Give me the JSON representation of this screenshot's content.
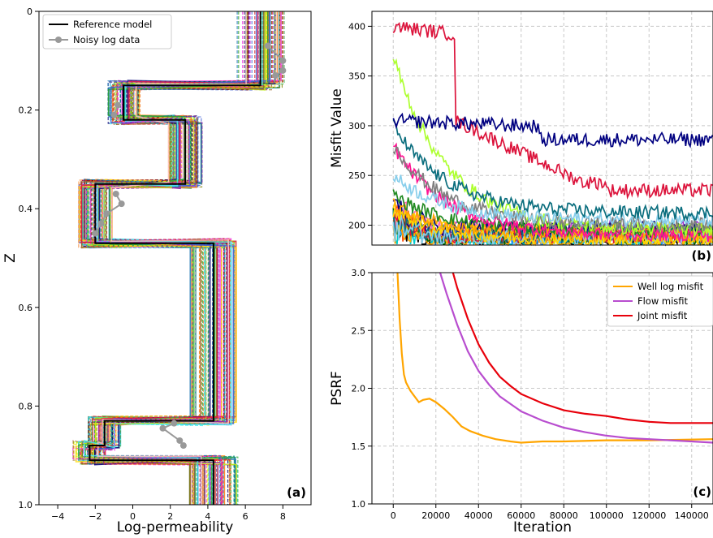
{
  "chart_data": [
    {
      "panel": "(a)",
      "type": "line",
      "xlabel": "Log-permeability",
      "ylabel": "Z",
      "xlim": [
        -5,
        9.5
      ],
      "ylim": [
        1.0,
        0.0
      ],
      "xticks": [
        "−4",
        "−2",
        "0",
        "2",
        "4",
        "6",
        "8"
      ],
      "yticks": [
        "0",
        "0.2",
        "0.4",
        "0.6",
        "0.8",
        "1.0"
      ],
      "legend": {
        "placement": "top-left",
        "items": [
          "Reference model",
          "Noisy log data"
        ]
      },
      "reference_model": {
        "name": "Reference model",
        "color": "#000000",
        "steps": [
          {
            "z0": 0.0,
            "z1": 0.15,
            "k": 6.8
          },
          {
            "z0": 0.15,
            "z1": 0.22,
            "k": -0.5
          },
          {
            "z0": 0.22,
            "z1": 0.35,
            "k": 2.8
          },
          {
            "z0": 0.35,
            "z1": 0.47,
            "k": -2.0
          },
          {
            "z0": 0.47,
            "z1": 0.83,
            "k": 4.3
          },
          {
            "z0": 0.83,
            "z1": 0.88,
            "k": -1.5
          },
          {
            "z0": 0.88,
            "z1": 0.91,
            "k": -2.3
          },
          {
            "z0": 0.91,
            "z1": 1.0,
            "k": 4.3
          }
        ]
      },
      "noisy_log_data": {
        "name": "Noisy log data",
        "color": "#999999",
        "points": [
          {
            "z": 0.07,
            "k": 7.2
          },
          {
            "z": 0.1,
            "k": 8.0
          },
          {
            "z": 0.12,
            "k": 8.0
          },
          {
            "z": 0.13,
            "k": 7.6
          },
          {
            "z": 0.19,
            "k": -0.8
          },
          {
            "z": 0.21,
            "k": -1.0
          },
          {
            "z": 0.37,
            "k": -0.9
          },
          {
            "z": 0.39,
            "k": -0.6
          },
          {
            "z": 0.41,
            "k": -1.4
          },
          {
            "z": 0.43,
            "k": -1.7
          },
          {
            "z": 0.45,
            "k": -2.0
          },
          {
            "z": 0.835,
            "k": 2.2
          },
          {
            "z": 0.845,
            "k": 1.6
          },
          {
            "z": 0.87,
            "k": 2.5
          },
          {
            "z": 0.88,
            "k": 2.7
          }
        ]
      },
      "ensemble_colors": [
        "#e6194b",
        "#3cb44b",
        "#ffe119",
        "#4363d8",
        "#f58231",
        "#911eb4",
        "#46f0f0",
        "#f032e6",
        "#bcf60c",
        "#fabebe",
        "#008080",
        "#9a6324",
        "#800000",
        "#808000",
        "#000075",
        "#ff7f0e",
        "#1f77b4",
        "#2ca02c",
        "#d62728",
        "#17becf"
      ],
      "panel_label": "(a)"
    },
    {
      "panel": "(b)",
      "type": "line",
      "ylabel": "Misfit Value",
      "xlim": [
        -10000,
        150000
      ],
      "ylim": [
        180,
        415
      ],
      "yticks": [
        "200",
        "250",
        "300",
        "350",
        "400"
      ],
      "series_levels": [
        {
          "color": "#000080",
          "start": 305,
          "end": 283
        },
        {
          "color": "#dc143c",
          "start": 400,
          "drop_at": 29000,
          "end": 243
        },
        {
          "color": "#0b6e7e",
          "start": 300,
          "end": 212
        },
        {
          "color": "#87ceeb",
          "start": 250,
          "end": 205
        },
        {
          "color": "#808080",
          "start": 280,
          "end": 200
        },
        {
          "color": "#adff2f",
          "start": 370,
          "end": 195
        },
        {
          "color": "#ff1493",
          "start": 280,
          "end": 190
        },
        {
          "color": "#228b22",
          "start": 230,
          "end": 195
        },
        {
          "color": "#ffa500",
          "start": 220,
          "end": 190
        },
        {
          "color": "#ffd700",
          "start": 215,
          "end": 185
        }
      ],
      "panel_label": "(b)"
    },
    {
      "panel": "(c)",
      "type": "line",
      "xlabel": "Iteration",
      "ylabel": "PSRF",
      "xlim": [
        -10000,
        150000
      ],
      "ylim": [
        1.0,
        3.0
      ],
      "xticks": [
        "0",
        "20000",
        "40000",
        "60000",
        "80000",
        "100000",
        "120000",
        "140000"
      ],
      "yticks": [
        "1.0",
        "1.5",
        "2.0",
        "2.5",
        "3.0"
      ],
      "legend": {
        "placement": "top-right"
      },
      "series": [
        {
          "name": "Well log misfit",
          "color": "#ffa500",
          "x": [
            2000,
            3000,
            4000,
            5000,
            6000,
            8000,
            10000,
            12000,
            14000,
            17000,
            20000,
            24000,
            28000,
            32000,
            36000,
            42000,
            48000,
            55000,
            60000,
            70000,
            80000,
            100000,
            120000,
            150000
          ],
          "y": [
            3.0,
            2.6,
            2.3,
            2.12,
            2.05,
            1.98,
            1.93,
            1.88,
            1.9,
            1.91,
            1.88,
            1.82,
            1.75,
            1.67,
            1.63,
            1.59,
            1.56,
            1.54,
            1.53,
            1.54,
            1.54,
            1.55,
            1.55,
            1.56
          ]
        },
        {
          "name": "Flow misfit",
          "color": "#b84dcf",
          "x": [
            22000,
            25000,
            30000,
            35000,
            40000,
            45000,
            50000,
            60000,
            70000,
            80000,
            90000,
            100000,
            110000,
            120000,
            130000,
            140000,
            150000
          ],
          "y": [
            3.0,
            2.82,
            2.55,
            2.32,
            2.15,
            2.03,
            1.93,
            1.8,
            1.72,
            1.66,
            1.62,
            1.59,
            1.57,
            1.56,
            1.55,
            1.54,
            1.53
          ]
        },
        {
          "name": "Joint misfit",
          "color": "#e8000b",
          "x": [
            28000,
            30000,
            35000,
            40000,
            45000,
            50000,
            55000,
            60000,
            70000,
            80000,
            90000,
            100000,
            110000,
            120000,
            130000,
            140000,
            150000
          ],
          "y": [
            3.0,
            2.87,
            2.6,
            2.38,
            2.22,
            2.1,
            2.02,
            1.95,
            1.87,
            1.81,
            1.78,
            1.76,
            1.73,
            1.71,
            1.7,
            1.7,
            1.7
          ]
        }
      ],
      "panel_label": "(c)"
    }
  ]
}
